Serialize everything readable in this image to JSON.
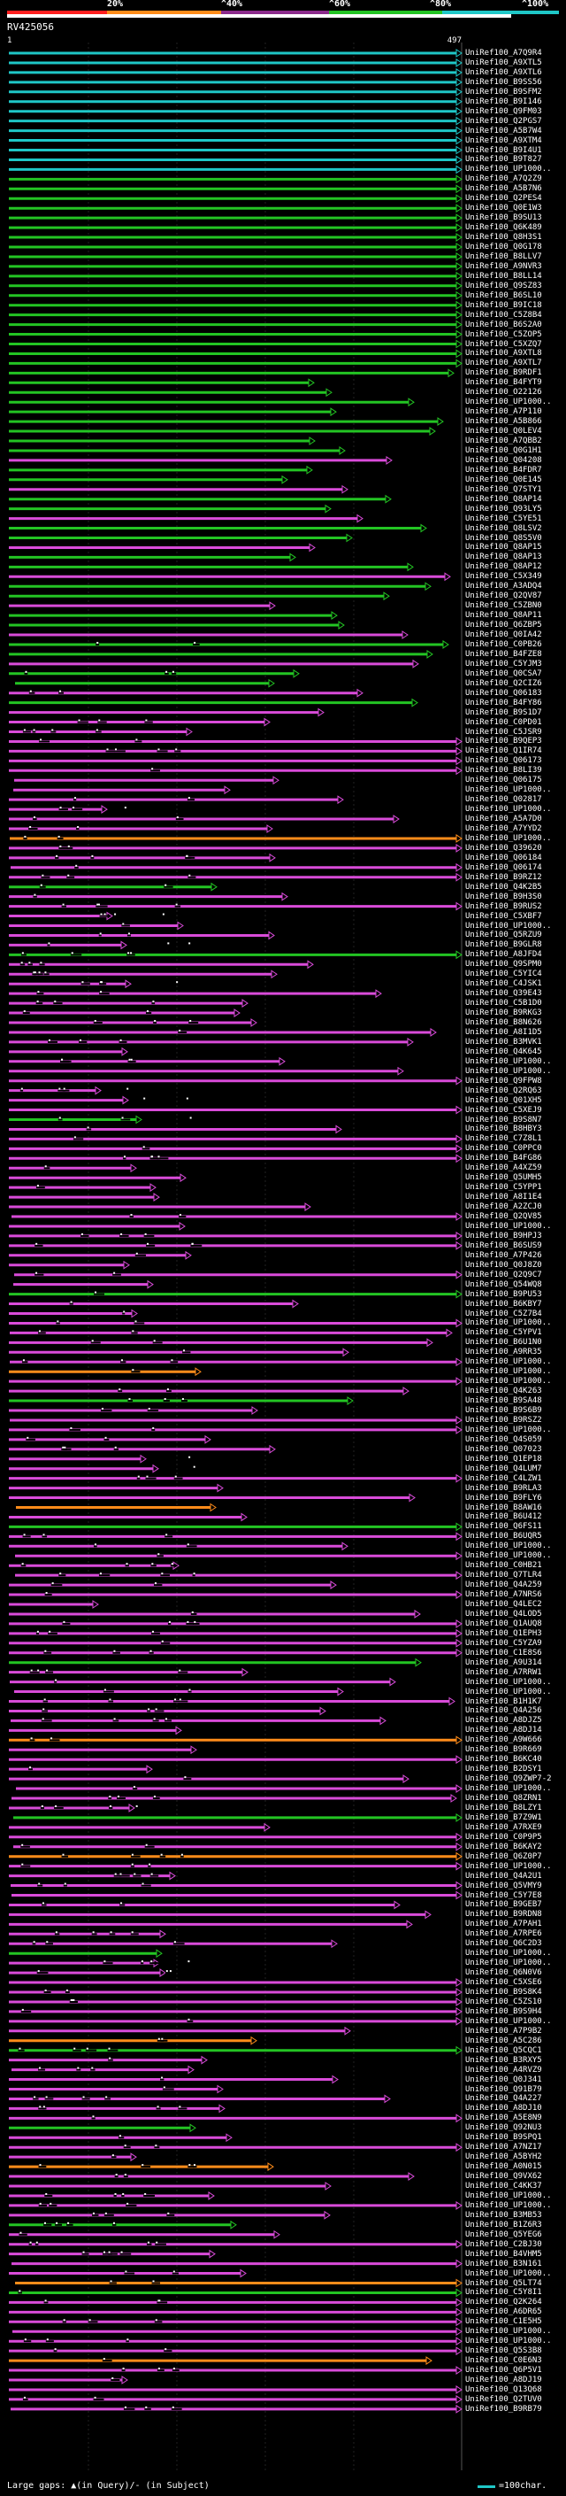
{
  "query_id": "RV425056",
  "legend": {
    "large_gaps": "Large gaps: ▲(in Query)/- (in Subject)",
    "scale": "=100char."
  },
  "colors": {
    "red": "#ff1f1f",
    "orange": "#ff8c1a",
    "purple": "#d94bd9",
    "green": "#23c423",
    "cyan": "#1fc7c7",
    "black": "#000000",
    "white": "#ffffff"
  },
  "chart_data": {
    "type": "alignment-overview",
    "query_length": 497,
    "axis_ticks": [
      "1",
      "497"
    ],
    "percent_bands": [
      {
        "label": "20%",
        "color": "#ff1f1f"
      },
      {
        "label": "^40%",
        "color": "#ff8c1a"
      },
      {
        "label": "^60%",
        "color": "#8b2a8b"
      },
      {
        "label": "^80%",
        "color": "#23c423"
      },
      {
        "label": "^100%",
        "color": "#1fc7c7"
      }
    ],
    "hit_labels": [
      "UniRef100_A7Q9R4",
      "UniRef100_A9XTL5",
      "UniRef100_A9XTL6",
      "UniRef100_B9SS56",
      "UniRef100_B9SFM2",
      "UniRef100_B9I146",
      "UniRef100_Q9FM03",
      "UniRef100_Q2PGS7",
      "UniRef100_A5B7W4",
      "UniRef100_A9XTM4",
      "UniRef100_B9I4U1",
      "UniRef100_B9T827",
      "UniRef100_UP1000..",
      "UniRef100_A7Q2Z9",
      "UniRef100_A5B7N6",
      "UniRef100_Q2PES4",
      "UniRef100_Q0E1W3",
      "UniRef100_B9SU13",
      "UniRef100_Q6K489",
      "UniRef100_Q8H3S1",
      "UniRef100_Q0G178",
      "UniRef100_B8LLV7",
      "UniRef100_A9NVR3",
      "UniRef100_B8LL14",
      "UniRef100_Q9SZ83",
      "UniRef100_B6SL10",
      "UniRef100_B9IC18",
      "UniRef100_C5Z8B4",
      "UniRef100_B6S2A0",
      "UniRef100_C5ZOP5",
      "UniRef100_C5XZQ7",
      "UniRef100_A9XTL8",
      "UniRef100_A9XTL7",
      "UniRef100_B9RDF1",
      "UniRef100_B4FYT9",
      "UniRef100_O22126",
      "UniRef100_UP1000..",
      "UniRef100_A7P110",
      "UniRef100_A5B866",
      "UniRef100_Q0LEV4",
      "UniRef100_A7QBB2",
      "UniRef100_Q0G1H1",
      "UniRef100_Q04208",
      "UniRef100_B4FDR7",
      "UniRef100_Q0E145",
      "UniRef100_Q7STY1",
      "UniRef100_Q8AP14",
      "UniRef100_Q93LY5",
      "UniRef100_C5YE51",
      "UniRef100_Q8LSV2",
      "UniRef100_Q8S5V0",
      "UniRef100_Q8AP15",
      "UniRef100_Q8AP13",
      "UniRef100_Q8AP12",
      "UniRef100_C5X349",
      "UniRef100_A3ADQ4",
      "UniRef100_Q2QV87",
      "UniRef100_C5ZBN0",
      "UniRef100_Q8AP11",
      "UniRef100_Q6ZBP5",
      "UniRef100_Q0IA42",
      "UniRef100_C0PB26",
      "UniRef100_B4FZE8",
      "UniRef100_C5YJM3",
      "UniRef100_Q0CSA7",
      "UniRef100_Q2CIZ6",
      "UniRef100_Q06183",
      "UniRef100_B4FY86",
      "UniRef100_B9S1D7",
      "UniRef100_C0PD01",
      "UniRef100_C5JSR9",
      "UniRef100_B9QEP3",
      "UniRef100_Q1IR74",
      "UniRef100_Q06173",
      "UniRef100_B8LI39",
      "UniRef100_Q06175",
      "UniRef100_UP1000..",
      "UniRef100_Q02817",
      "UniRef100_UP1000..",
      "UniRef100_A5A7D0",
      "UniRef100_A7YYD2",
      "UniRef100_UP1000..",
      "UniRef100_Q39620",
      "UniRef100_Q06184",
      "UniRef100_Q06174",
      "UniRef100_B9RZ12",
      "UniRef100_Q4K2B5",
      "UniRef100_B9H3S0",
      "UniRef100_B9RUS2",
      "UniRef100_C5XBF7",
      "UniRef100_UP1000..",
      "UniRef100_Q5RZU9",
      "UniRef100_B9GLR8",
      "UniRef100_A8JFD4",
      "UniRef100_Q9SPM0",
      "UniRef100_C5YIC4",
      "UniRef100_C4JSK1",
      "UniRef100_Q39E43",
      "UniRef100_C5B1D0",
      "UniRef100_B9RKG3",
      "UniRef100_B8N626",
      "UniRef100_A8I1D5",
      "UniRef100_B3MVK1",
      "UniRef100_Q4K645",
      "UniRef100_UP1000..",
      "UniRef100_UP1000..",
      "UniRef100_Q9FPW8",
      "UniRef100_Q2RQ63",
      "UniRef100_Q01XH5",
      "UniRef100_C5XEJ9",
      "UniRef100_B9S8N7",
      "UniRef100_B8HBY3",
      "UniRef100_C7Z8L1",
      "UniRef100_C0PPC0",
      "UniRef100_B4FG86",
      "UniRef100_A4XZ59",
      "UniRef100_Q5UMH5",
      "UniRef100_C5YPP1",
      "UniRef100_A8I1E4",
      "UniRef100_A2ZCJ0",
      "UniRef100_Q2QV85",
      "UniRef100_UP1000..",
      "UniRef100_B9HPJ3",
      "UniRef100_B6SUS9",
      "UniRef100_A7P426",
      "UniRef100_Q0J8Z0",
      "UniRef100_Q2Q9C7",
      "UniRef100_Q54WQ8",
      "UniRef100_B9PU53",
      "UniRef100_B6KBY7",
      "UniRef100_C5Z7B4",
      "UniRef100_UP1000..",
      "UniRef100_C5YPV1",
      "UniRef100_B6U1N0",
      "UniRef100_A9RR35",
      "UniRef100_UP1000..",
      "UniRef100_UP1000..",
      "UniRef100_UP1000..",
      "UniRef100_Q4K263",
      "UniRef100_B9SA48",
      "UniRef100_B9S6B9",
      "UniRef100_B9RSZ2",
      "UniRef100_UP1000..",
      "UniRef100_Q4S059",
      "UniRef100_Q07023",
      "UniRef100_Q1EP18",
      "UniRef100_Q4LUM7",
      "UniRef100_C4LZW1",
      "UniRef100_B9RLA3",
      "UniRef100_B9FLY6",
      "UniRef100_B8AW16",
      "UniRef100_B6U412",
      "UniRef100_Q6FS11",
      "UniRef100_B6UQR5",
      "UniRef100_UP1000..",
      "UniRef100_UP1000..",
      "UniRef100_C0HB21",
      "UniRef100_Q7TLR4",
      "UniRef100_Q4A259",
      "UniRef100_A7NRS6",
      "UniRef100_Q4LEC2",
      "UniRef100_Q4LOD5",
      "UniRef100_Q1AUQ8",
      "UniRef100_Q1EPH3",
      "UniRef100_C5YZA9",
      "UniRef100_C1E8S6",
      "UniRef100_A9U314",
      "UniRef100_A7RRW1",
      "UniRef100_UP1000..",
      "UniRef100_UP1000..",
      "UniRef100_B1H1K7",
      "UniRef100_Q4A256",
      "UniRef100_A8DJZ5",
      "UniRef100_A8DJ14",
      "UniRef100_A9W666",
      "UniRef100_B9R669",
      "UniRef100_B6KC40",
      "UniRef100_B2DSY1",
      "UniRef100_Q9ZWP7-2",
      "UniRef100_UP1000..",
      "UniRef100_Q8ZRN1",
      "UniRef100_B8LZY1",
      "UniRef100_B7Z9W1",
      "UniRef100_A7RXE9",
      "UniRef100_C0P9P5",
      "UniRef100_B6KAY2",
      "UniRef100_Q6Z0P7",
      "UniRef100_UP1000..",
      "UniRef100_Q4A2U1",
      "UniRef100_Q5VMY9",
      "UniRef100_C5Y7E8",
      "UniRef100_B9GEB7",
      "UniRef100_B9RDN8",
      "UniRef100_A7PAH1",
      "UniRef100_A7RPE6",
      "UniRef100_Q6C2D3",
      "UniRef100_UP1000..",
      "UniRef100_UP1000..",
      "UniRef100_Q6N0V6",
      "UniRef100_C5XSE6",
      "UniRef100_B9S8K4",
      "UniRef100_C5ZS10",
      "UniRef100_B9S9H4",
      "UniRef100_UP1000..",
      "UniRef100_A7P9B2",
      "UniRef100_A5C286",
      "UniRef100_Q5CQC1",
      "UniRef100_B3RXY5",
      "UniRef100_A4RVZ9",
      "UniRef100_Q0J341",
      "UniRef100_Q91B79",
      "UniRef100_Q4A227",
      "UniRef100_A8DJ10",
      "UniRef100_A5E8N9",
      "UniRef100_Q92NU3",
      "UniRef100_B9SPQ1",
      "UniRef100_A7NZ17",
      "UniRef100_A5BYH2",
      "UniRef100_A0N015",
      "UniRef100_Q9VX62",
      "UniRef100_C4KK37",
      "UniRef100_UP1000..",
      "UniRef100_UP1000..",
      "UniRef100_B3MB53",
      "UniRef100_B1Z6R3",
      "UniRef100_Q5YEG6",
      "UniRef100_C2BJ30",
      "UniRef100_B4VHM5",
      "UniRef100_B3N161",
      "UniRef100_UP1000..",
      "UniRef100_Q5LT74",
      "UniRef100_C5Y8I1",
      "UniRef100_Q2K264",
      "UniRef100_A6DR65",
      "UniRef100_C1E5H5",
      "UniRef100_UP1000..",
      "UniRef100_UP1000..",
      "UniRef100_Q5S3B8",
      "UniRef100_C0E6N3",
      "UniRef100_Q6P5V1",
      "UniRef100_A8DJ19",
      "UniRef100_Q13Q68",
      "UniRef100_Q2TUV0",
      "UniRef100_B9RB79"
    ]
  }
}
